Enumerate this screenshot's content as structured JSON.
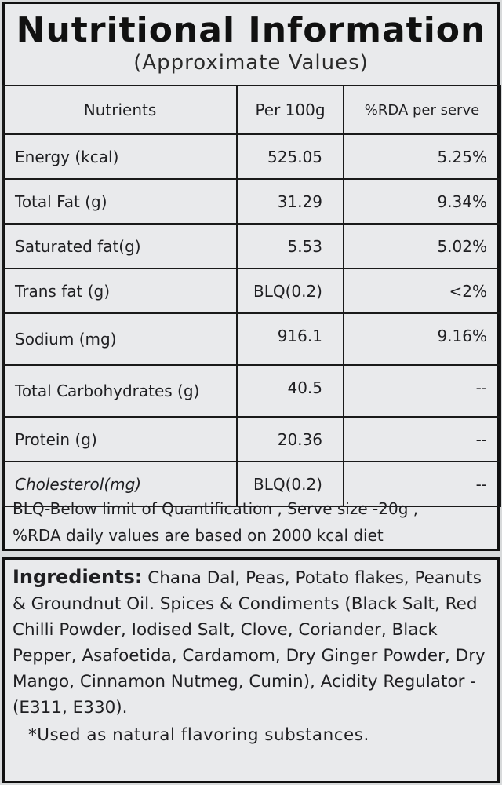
{
  "nutrition": {
    "title": "Nutritional Information",
    "subtitle": "(Approximate Values)",
    "headers": [
      "Nutrients",
      "Per 100g",
      "%RDA per serve"
    ],
    "rows": [
      {
        "nutrient": "Energy (kcal)",
        "per100g": "525.05",
        "rda": "5.25%"
      },
      {
        "nutrient": "Total Fat (g)",
        "per100g": "31.29",
        "rda": "9.34%"
      },
      {
        "nutrient": "Saturated fat(g)",
        "per100g": "5.53",
        "rda": "5.02%"
      },
      {
        "nutrient": "Trans fat (g)",
        "per100g": "BLQ(0.2)",
        "rda": "<2%"
      },
      {
        "nutrient": "Sodium (mg)",
        "per100g": "916.1",
        "rda": "9.16%"
      },
      {
        "nutrient": "Total Carbohydrates (g)",
        "per100g": "40.5",
        "rda": "--"
      },
      {
        "nutrient": "Protein (g)",
        "per100g": "20.36",
        "rda": "--"
      },
      {
        "nutrient": "Cholesterol(mg)",
        "per100g": "BLQ(0.2)",
        "rda": "--"
      }
    ],
    "footnote_line1": "BLQ-Below limit of Quantification , Serve size -20g ,",
    "footnote_line2": "%RDA daily values are based on 2000 kcal diet"
  },
  "ingredients": {
    "label": "Ingredients:",
    "text": "Chana Dal, Peas, Potato flakes, Peanuts & Groundnut Oil. Spices & Condiments (Black Salt, Red Chilli Powder, Iodised Salt, Clove, Coriander, Black Pepper, Asafoetida, Cardamom, Dry Ginger Powder, Dry Mango, Cinnamon Nutmeg, Cumin), Acidity Regulator - (E311, E330).",
    "note": "*Used as natural flavoring substances."
  }
}
